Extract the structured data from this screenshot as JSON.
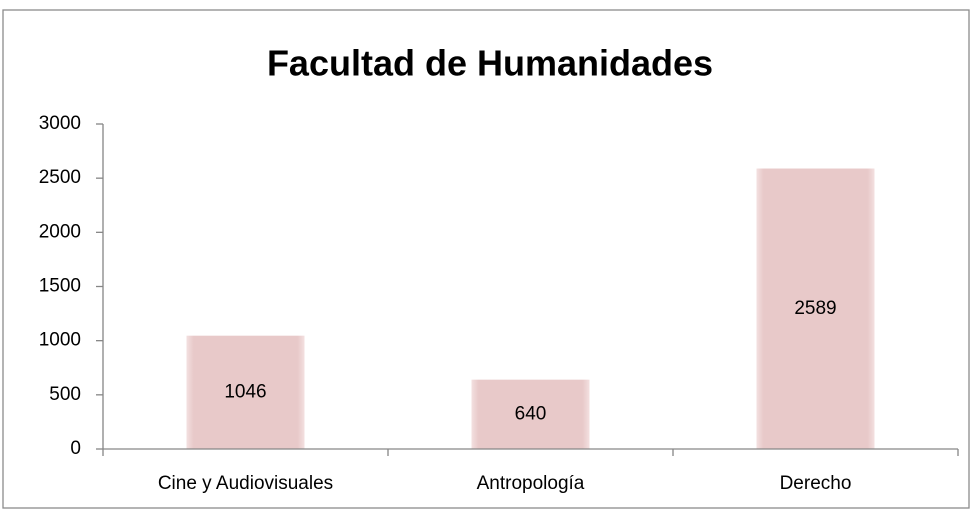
{
  "chart_data": {
    "type": "bar",
    "title": "Facultad de Humanidades",
    "categories": [
      "Cine y Audiovisuales",
      "Antropología",
      "Derecho"
    ],
    "values": [
      1046,
      640,
      2589
    ],
    "color": "#e8c9c9",
    "ylim": [
      0,
      3000
    ],
    "yticks": [
      0,
      500,
      1000,
      1500,
      2000,
      2500,
      3000
    ],
    "grid": false
  }
}
